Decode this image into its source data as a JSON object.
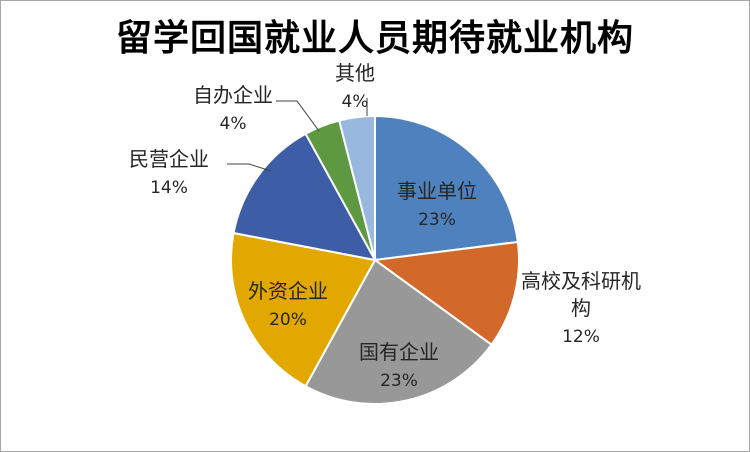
{
  "chart_data": {
    "type": "pie",
    "title": "留学回国就业人员期待就业机构",
    "categories": [
      "事业单位",
      "高校及科研机构",
      "国有企业",
      "外资企业",
      "民营企业",
      "自办企业",
      "其他"
    ],
    "values": [
      23,
      12,
      23,
      20,
      14,
      4,
      4
    ],
    "labels": [
      "23%",
      "12%",
      "23%",
      "20%",
      "14%",
      "4%",
      "4%"
    ],
    "colors": [
      "#4e81bd",
      "#d2692a",
      "#989898",
      "#e2a800",
      "#3d5ea6",
      "#5e9941",
      "#98b8de"
    ],
    "name_lines": [
      [
        "事业单位"
      ],
      [
        "高校及科研机",
        "构"
      ],
      [
        "国有企业"
      ],
      [
        "外资企业"
      ],
      [
        "民营企业"
      ],
      [
        "自办企业"
      ],
      [
        "其他"
      ]
    ],
    "legend": "none",
    "start_angle": "12 o'clock",
    "direction": "clockwise"
  }
}
